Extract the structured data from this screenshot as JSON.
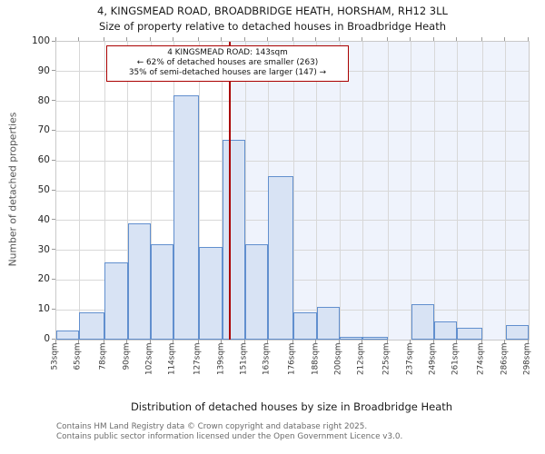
{
  "page": {
    "title_line1": "4, KINGSMEAD ROAD, BROADBRIDGE HEATH, HORSHAM, RH12 3LL",
    "title_line2": "Size of property relative to detached houses in Broadbridge Heath"
  },
  "annotation": {
    "line1": "4 KINGSMEAD ROAD: 143sqm",
    "line2": "← 62% of detached houses are smaller (263)",
    "line3": "35% of semi-detached houses are larger (147) →"
  },
  "footer": {
    "line1": "Contains HM Land Registry data © Crown copyright and database right 2025.",
    "line2": "Contains public sector information licensed under the Open Government Licence v3.0."
  },
  "chart_data": {
    "type": "bar",
    "title": "4, KINGSMEAD ROAD, BROADBRIDGE HEATH, HORSHAM, RH12 3LL",
    "subtitle": "Size of property relative to detached houses in Broadbridge Heath",
    "xlabel": "Distribution of detached houses by size in Broadbridge Heath",
    "ylabel": "Number of detached properties",
    "ylim": [
      0,
      100
    ],
    "ytick_step": 10,
    "grid": true,
    "bin_edges": [
      53,
      65,
      78,
      90,
      102,
      114,
      127,
      139,
      151,
      163,
      176,
      188,
      200,
      212,
      225,
      237,
      249,
      261,
      274,
      286,
      298
    ],
    "tick_labels": [
      "53sqm",
      "65sqm",
      "78sqm",
      "90sqm",
      "102sqm",
      "114sqm",
      "127sqm",
      "139sqm",
      "151sqm",
      "163sqm",
      "176sqm",
      "188sqm",
      "200sqm",
      "212sqm",
      "225sqm",
      "237sqm",
      "249sqm",
      "261sqm",
      "274sqm",
      "286sqm",
      "298sqm"
    ],
    "values": [
      3,
      9,
      26,
      39,
      32,
      82,
      31,
      67,
      32,
      55,
      9,
      11,
      1,
      1,
      0,
      12,
      6,
      4,
      0,
      5
    ],
    "marker": {
      "value": 143,
      "label": "4 KINGSMEAD ROAD: 143sqm",
      "smaller_pct": "62%",
      "smaller_count": 263,
      "larger_pct": "35%",
      "larger_count": 147
    },
    "colors": {
      "bar_fill": "#d8e3f4",
      "bar_border": "#618fce",
      "marker_line": "#aa0000",
      "annotation_border": "#aa0000",
      "shade_region": "#eff3fc",
      "grid_line": "#d8d8d8"
    }
  }
}
